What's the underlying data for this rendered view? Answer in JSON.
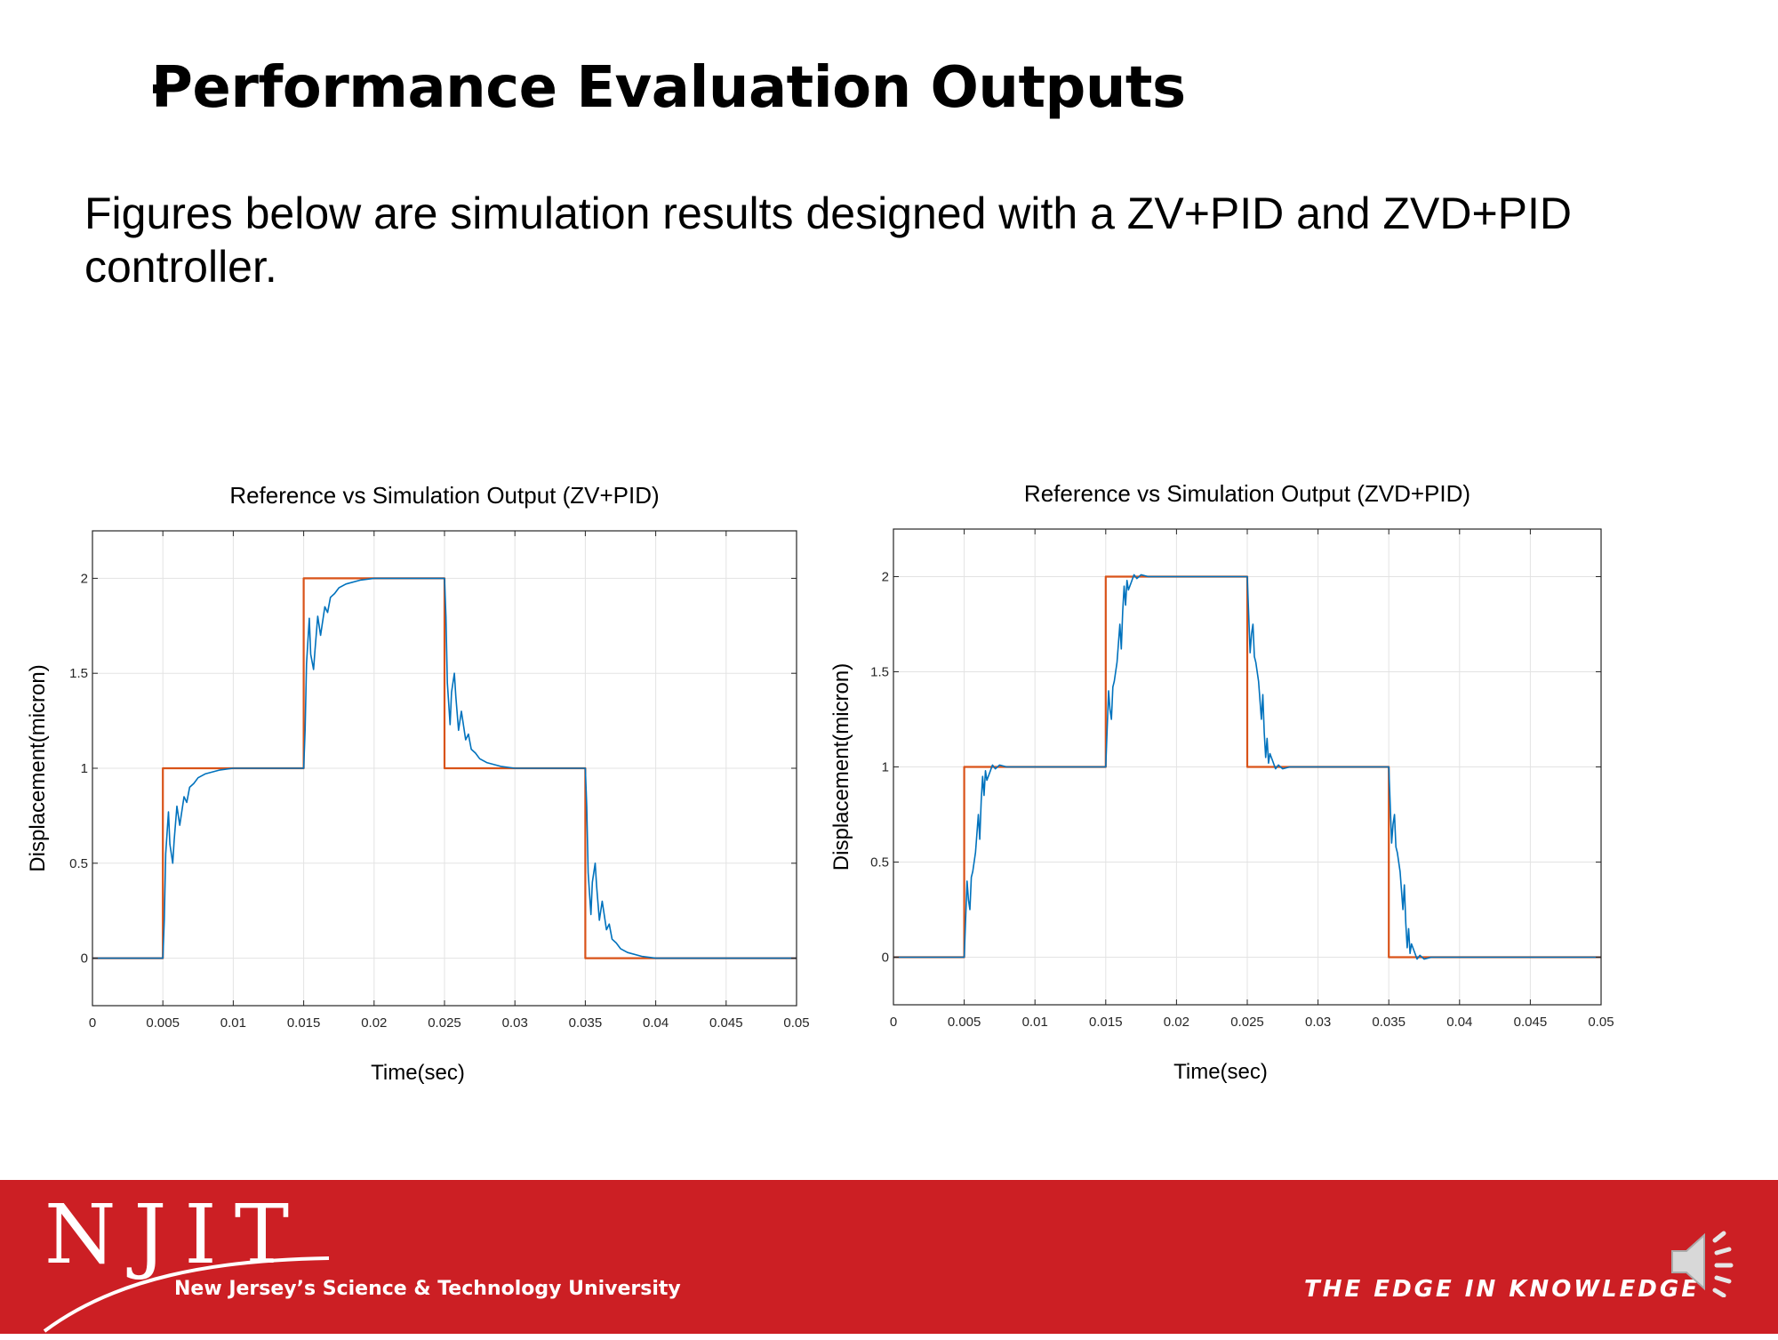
{
  "slide": {
    "title": "Performance Evaluation Outputs",
    "body_text": "Figures below are simulation results designed with a ZV+PID and ZVD+PID controller."
  },
  "footer": {
    "logo_text": "NJIT",
    "university": "New Jersey’s Science & Technology University",
    "tagline": "THE EDGE IN KNOWLEDGE",
    "colors": {
      "background": "#cc1f24",
      "text": "#ffffff"
    },
    "icons": [
      "njit-logo",
      "speaker-icon"
    ]
  },
  "chart_data": [
    {
      "type": "line",
      "title": "Reference vs Simulation Output (ZV+PID)",
      "xlabel": "Time(sec)",
      "ylabel": "Displacement(micron)",
      "xlim": [
        0,
        0.05
      ],
      "ylim": [
        -0.25,
        2.25
      ],
      "xticks": [
        0,
        0.005,
        0.01,
        0.015,
        0.02,
        0.025,
        0.03,
        0.035,
        0.04,
        0.045,
        0.05
      ],
      "xtick_labels": [
        "0",
        "0.005",
        "0.01",
        "0.015",
        "0.02",
        "0.025",
        "0.03",
        "0.035",
        "0.04",
        "0.045",
        "0.05"
      ],
      "yticks": [
        0,
        0.5,
        1,
        1.5,
        2
      ],
      "ytick_labels": [
        "0",
        "0.5",
        "1",
        "1.5",
        "2"
      ],
      "grid": true,
      "series": [
        {
          "color": "#d95319",
          "x": [
            0,
            0.005,
            0.005,
            0.015,
            0.015,
            0.025,
            0.025,
            0.035,
            0.035,
            0.05
          ],
          "y": [
            0,
            0,
            1,
            1,
            2,
            2,
            1,
            1,
            0,
            0
          ]
        },
        {
          "color": "#0072bd",
          "x": [
            0,
            0.005,
            0.0051,
            0.0052,
            0.0054,
            0.0055,
            0.0057,
            0.0058,
            0.006,
            0.0062,
            0.0063,
            0.0065,
            0.0067,
            0.0069,
            0.0072,
            0.0075,
            0.008,
            0.009,
            0.01,
            0.011,
            0.015,
            0.0151,
            0.0152,
            0.0154,
            0.0155,
            0.0157,
            0.0158,
            0.016,
            0.0162,
            0.0163,
            0.0165,
            0.0167,
            0.0169,
            0.0172,
            0.0175,
            0.018,
            0.019,
            0.02,
            0.021,
            0.025,
            0.0251,
            0.0252,
            0.0254,
            0.0255,
            0.0257,
            0.0258,
            0.026,
            0.0262,
            0.0263,
            0.0265,
            0.0267,
            0.0269,
            0.0272,
            0.0275,
            0.028,
            0.029,
            0.03,
            0.031,
            0.035,
            0.0351,
            0.0352,
            0.0354,
            0.0355,
            0.0357,
            0.0358,
            0.036,
            0.0362,
            0.0363,
            0.0365,
            0.0367,
            0.0369,
            0.0372,
            0.0375,
            0.038,
            0.039,
            0.04,
            0.05
          ],
          "y": [
            0,
            0,
            0.2,
            0.55,
            0.77,
            0.6,
            0.5,
            0.62,
            0.8,
            0.7,
            0.75,
            0.85,
            0.82,
            0.9,
            0.92,
            0.95,
            0.97,
            0.99,
            1,
            1,
            1,
            1.2,
            1.55,
            1.79,
            1.6,
            1.52,
            1.62,
            1.8,
            1.7,
            1.75,
            1.85,
            1.82,
            1.9,
            1.92,
            1.95,
            1.97,
            1.99,
            2,
            2,
            2,
            1.8,
            1.45,
            1.23,
            1.4,
            1.5,
            1.38,
            1.2,
            1.3,
            1.25,
            1.15,
            1.18,
            1.1,
            1.08,
            1.05,
            1.03,
            1.01,
            1,
            1,
            1,
            0.8,
            0.45,
            0.23,
            0.4,
            0.5,
            0.38,
            0.2,
            0.3,
            0.25,
            0.15,
            0.18,
            0.1,
            0.08,
            0.05,
            0.03,
            0.01,
            0,
            0
          ]
        }
      ]
    },
    {
      "type": "line",
      "title": "Reference vs Simulation Output (ZVD+PID)",
      "xlabel": "Time(sec)",
      "ylabel": "Displacement(micron)",
      "xlim": [
        0,
        0.05
      ],
      "ylim": [
        -0.25,
        2.25
      ],
      "xticks": [
        0,
        0.005,
        0.01,
        0.015,
        0.02,
        0.025,
        0.03,
        0.035,
        0.04,
        0.045,
        0.05
      ],
      "xtick_labels": [
        "0",
        "0.005",
        "0.01",
        "0.015",
        "0.02",
        "0.025",
        "0.03",
        "0.035",
        "0.04",
        "0.045",
        "0.05"
      ],
      "yticks": [
        0,
        0.5,
        1,
        1.5,
        2
      ],
      "ytick_labels": [
        "0",
        "0.5",
        "1",
        "1.5",
        "2"
      ],
      "grid": true,
      "series": [
        {
          "color": "#d95319",
          "x": [
            0,
            0.005,
            0.005,
            0.015,
            0.015,
            0.025,
            0.025,
            0.035,
            0.035,
            0.05
          ],
          "y": [
            0,
            0,
            1,
            1,
            2,
            2,
            1,
            1,
            0,
            0
          ]
        },
        {
          "color": "#0072bd",
          "x": [
            0,
            0.005,
            0.0051,
            0.0052,
            0.0053,
            0.0054,
            0.0055,
            0.0056,
            0.0058,
            0.006,
            0.0061,
            0.0062,
            0.0063,
            0.0064,
            0.0065,
            0.0066,
            0.0068,
            0.007,
            0.0072,
            0.0075,
            0.008,
            0.009,
            0.01,
            0.015,
            0.0151,
            0.0152,
            0.0153,
            0.0154,
            0.0155,
            0.0156,
            0.0158,
            0.016,
            0.0161,
            0.0162,
            0.0163,
            0.0164,
            0.0165,
            0.0166,
            0.0168,
            0.017,
            0.0172,
            0.0175,
            0.018,
            0.019,
            0.02,
            0.025,
            0.0251,
            0.0252,
            0.0253,
            0.0254,
            0.0255,
            0.0256,
            0.0258,
            0.026,
            0.0261,
            0.0262,
            0.0263,
            0.0264,
            0.0265,
            0.0266,
            0.0268,
            0.027,
            0.0272,
            0.0275,
            0.028,
            0.029,
            0.03,
            0.035,
            0.0351,
            0.0352,
            0.0353,
            0.0354,
            0.0355,
            0.0356,
            0.0358,
            0.036,
            0.0361,
            0.0362,
            0.0363,
            0.0364,
            0.0365,
            0.0366,
            0.0368,
            0.037,
            0.0372,
            0.0375,
            0.038,
            0.039,
            0.04,
            0.05
          ],
          "y": [
            0,
            0,
            0.2,
            0.4,
            0.3,
            0.25,
            0.42,
            0.45,
            0.55,
            0.75,
            0.62,
            0.82,
            0.95,
            0.85,
            0.98,
            0.93,
            0.97,
            1.01,
            0.99,
            1.01,
            1,
            1,
            1,
            1,
            1.2,
            1.4,
            1.3,
            1.25,
            1.42,
            1.45,
            1.55,
            1.75,
            1.62,
            1.82,
            1.95,
            1.85,
            1.98,
            1.93,
            1.97,
            2.01,
            1.99,
            2.01,
            2,
            2,
            2,
            2,
            1.8,
            1.6,
            1.7,
            1.75,
            1.58,
            1.55,
            1.45,
            1.25,
            1.38,
            1.18,
            1.05,
            1.15,
            1.02,
            1.07,
            1.03,
            0.99,
            1.01,
            0.99,
            1,
            1,
            1,
            1,
            0.8,
            0.6,
            0.7,
            0.75,
            0.58,
            0.55,
            0.45,
            0.25,
            0.38,
            0.18,
            0.05,
            0.15,
            0.02,
            0.07,
            0.03,
            -0.01,
            0.01,
            -0.01,
            0,
            0,
            0,
            0
          ]
        }
      ]
    }
  ]
}
